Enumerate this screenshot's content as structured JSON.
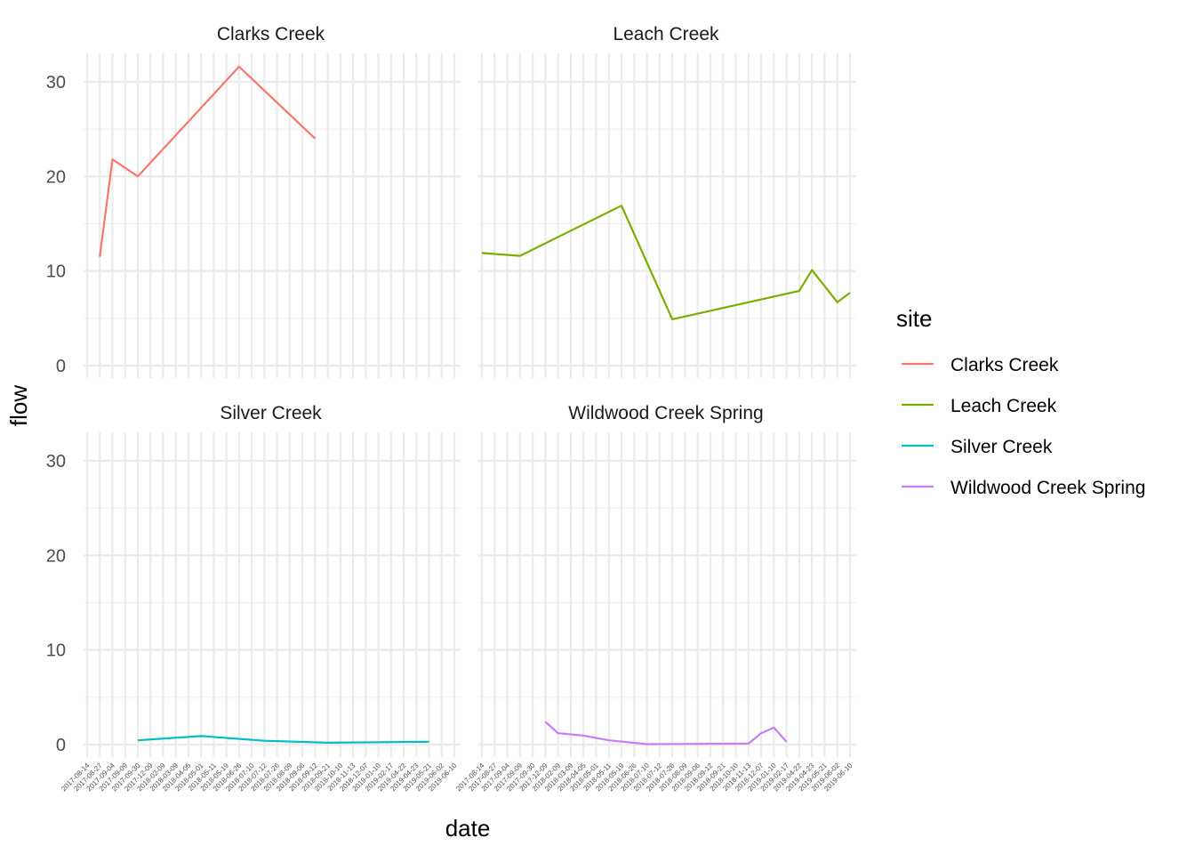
{
  "chart_data": {
    "type": "line",
    "facets": [
      "Clarks Creek",
      "Leach Creek",
      "Silver Creek",
      "Wildwood Creek Spring"
    ],
    "xlabel": "date",
    "ylabel": "flow",
    "yticks": [
      0,
      10,
      20,
      30
    ],
    "ylim": [
      0,
      33
    ],
    "x_categories": [
      "2017-08-14",
      "2017-08-27",
      "2017-09-04",
      "2017-09-09",
      "2017-09-30",
      "2017-12-09",
      "2018-02-09",
      "2018-03-09",
      "2018-04-05",
      "2018-05-01",
      "2018-05-11",
      "2018-05-19",
      "2018-06-26",
      "2018-07-10",
      "2018-07-12",
      "2018-07-26",
      "2018-08-09",
      "2018-09-06",
      "2018-09-12",
      "2018-09-21",
      "2018-10-10",
      "2018-11-13",
      "2018-12-07",
      "2019-01-10",
      "2019-02-17",
      "2019-04-22",
      "2019-04-23",
      "2019-05-21",
      "2019-06-02",
      "2019-06-10"
    ],
    "legend": {
      "title": "site",
      "position": "right"
    },
    "grid": true,
    "series": [
      {
        "name": "Clarks Creek",
        "color": "#F8766D",
        "x": [
          "2017-08-27",
          "2017-09-04",
          "2017-09-30",
          "2018-06-26",
          "2018-09-12"
        ],
        "y": [
          11.5,
          21.8,
          20.0,
          31.6,
          24.0
        ]
      },
      {
        "name": "Leach Creek",
        "color": "#7CAE00",
        "x": [
          "2017-08-14",
          "2017-09-09",
          "2018-05-19",
          "2018-07-26",
          "2019-04-22",
          "2019-04-23",
          "2019-06-02",
          "2019-06-10"
        ],
        "y": [
          11.9,
          11.6,
          16.9,
          4.9,
          7.9,
          10.1,
          6.7,
          7.7
        ]
      },
      {
        "name": "Silver Creek",
        "color": "#00BFC4",
        "x": [
          "2017-09-30",
          "2018-05-01",
          "2018-07-12",
          "2018-09-21",
          "2019-05-21"
        ],
        "y": [
          0.45,
          0.9,
          0.4,
          0.2,
          0.3
        ]
      },
      {
        "name": "Wildwood Creek Spring",
        "color": "#C77CFF",
        "x": [
          "2017-12-09",
          "2018-02-09",
          "2018-04-05",
          "2018-05-11",
          "2018-07-10",
          "2018-11-13",
          "2018-12-07",
          "2019-01-10",
          "2019-02-17"
        ],
        "y": [
          2.4,
          1.2,
          0.95,
          0.45,
          0.05,
          0.1,
          1.2,
          1.8,
          0.3
        ]
      }
    ]
  }
}
